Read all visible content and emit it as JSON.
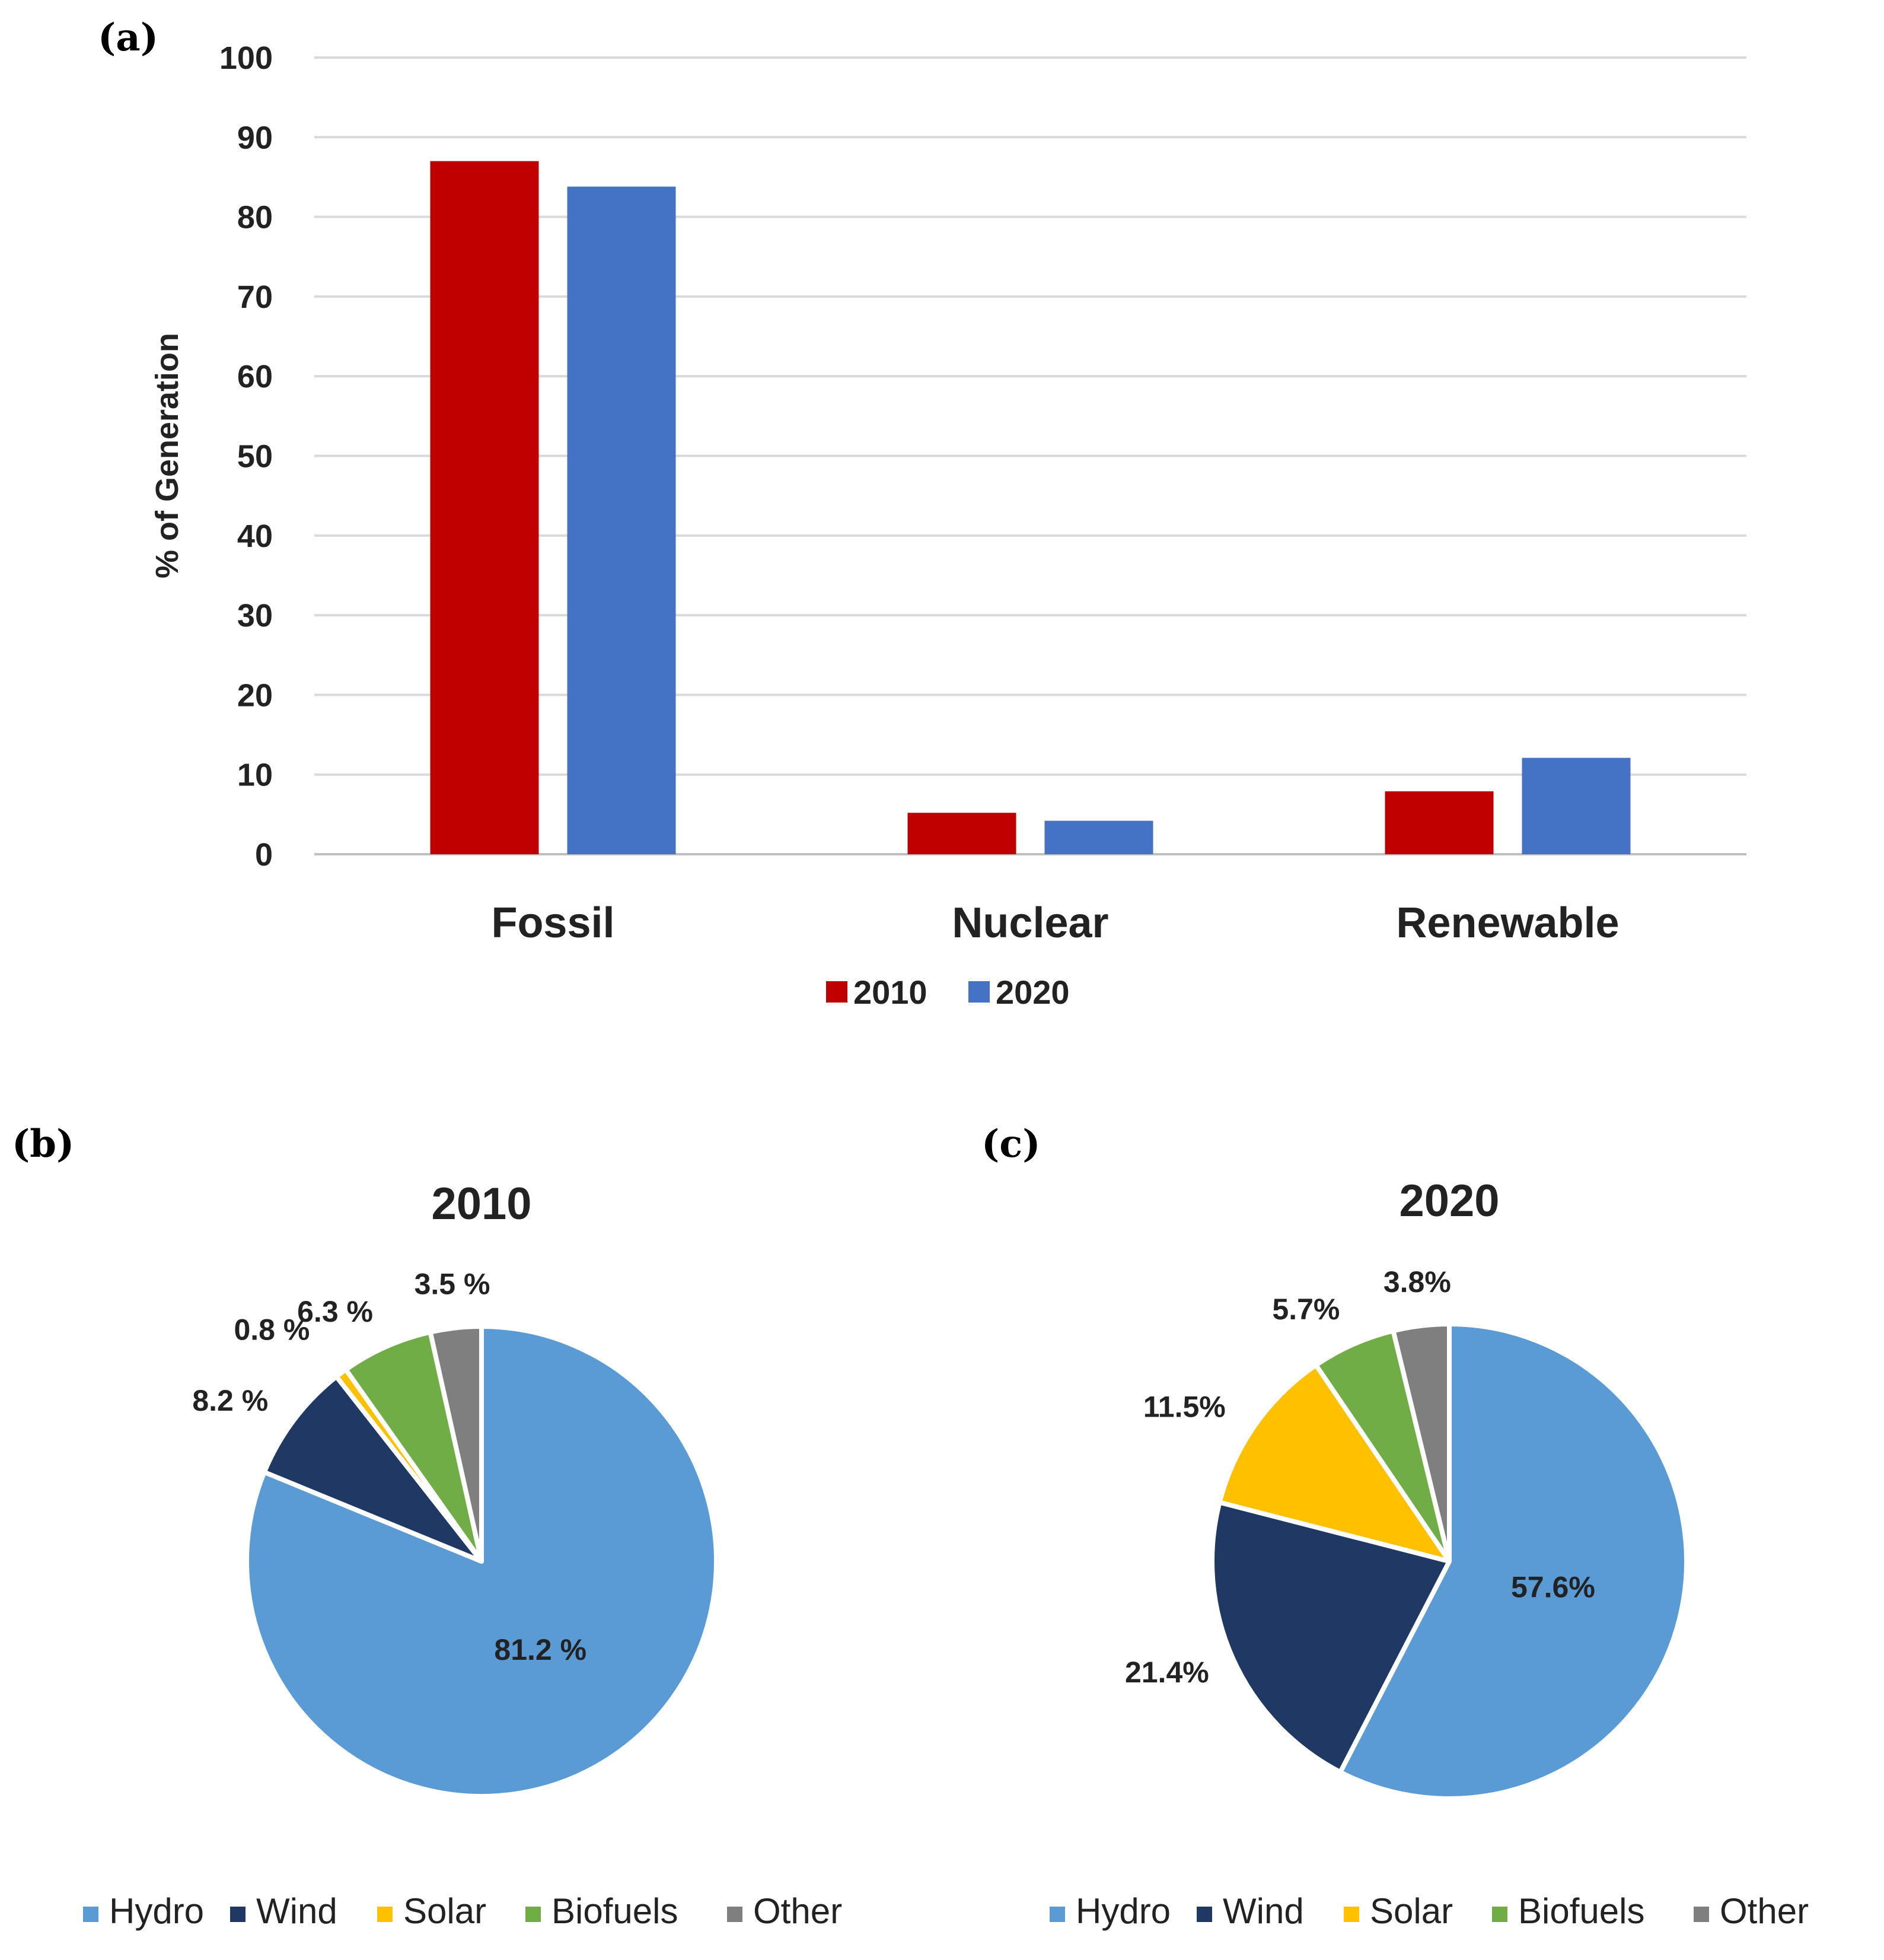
{
  "panel_labels": {
    "a": "(a)",
    "b": "(b)",
    "c": "(c)"
  },
  "chart_data": [
    {
      "type": "bar",
      "panel": "(a)",
      "title": "",
      "xlabel": "",
      "ylabel": "% of Generation",
      "ylim": [
        0,
        100
      ],
      "yticks": [
        0,
        10,
        20,
        30,
        40,
        50,
        60,
        70,
        80,
        90,
        100
      ],
      "categories": [
        "Fossil",
        "Nuclear",
        "Renewable"
      ],
      "series": [
        {
          "name": "2010",
          "color": "#c00000",
          "values": [
            87,
            5.2,
            7.9
          ]
        },
        {
          "name": "2020",
          "color": "#4472c4",
          "values": [
            83.8,
            4.2,
            12.1
          ]
        }
      ],
      "grid": true,
      "legend": "bottom-center"
    },
    {
      "type": "pie",
      "panel": "(b)",
      "title": "2010",
      "slices": [
        {
          "name": "Hydro",
          "value": 81.2,
          "label": "81.2 %",
          "color": "#5b9bd5"
        },
        {
          "name": "Wind",
          "value": 8.2,
          "label": "8.2 %",
          "color": "#203864"
        },
        {
          "name": "Solar",
          "value": 0.8,
          "label": "0.8 %",
          "color": "#ffc000"
        },
        {
          "name": "Biofuels",
          "value": 6.3,
          "label": "6.3 %",
          "color": "#70ad47"
        },
        {
          "name": "Other",
          "value": 3.5,
          "label": "3.5 %",
          "color": "#7f7f7f"
        }
      ],
      "legend": "bottom"
    },
    {
      "type": "pie",
      "panel": "(c)",
      "title": "2020",
      "slices": [
        {
          "name": "Hydro",
          "value": 57.6,
          "label": "57.6%",
          "color": "#5b9bd5"
        },
        {
          "name": "Wind",
          "value": 21.4,
          "label": "21.4%",
          "color": "#203864"
        },
        {
          "name": "Solar",
          "value": 11.5,
          "label": "11.5%",
          "color": "#ffc000"
        },
        {
          "name": "Biofuels",
          "value": 5.7,
          "label": "5.7%",
          "color": "#70ad47"
        },
        {
          "name": "Other",
          "value": 3.8,
          "label": "3.8%",
          "color": "#7f7f7f"
        }
      ],
      "legend": "bottom"
    }
  ]
}
